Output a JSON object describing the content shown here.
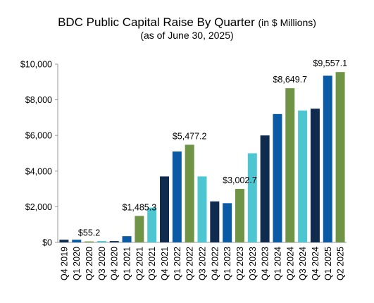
{
  "title": "BDC Public Capital Raise By Quarter",
  "title_unit": "(in $ Millions)",
  "subtitle": "(as of June 30, 2025)",
  "colors": {
    "dark_navy": "#0f2c4e",
    "blue": "#0b5aa5",
    "teal": "#4ec6d1",
    "green": "#6f9445"
  },
  "chart_data": {
    "type": "bar",
    "categories": [
      "Q4 2019",
      "Q1 2020",
      "Q2 2020",
      "Q3 2020",
      "Q4 2020",
      "Q1 2021",
      "Q2 2021",
      "Q3 2021",
      "Q4 2021",
      "Q1 2022",
      "Q2 2022",
      "Q3 2022",
      "Q4 2022",
      "Q1 2023",
      "Q2 2023",
      "Q3 2023",
      "Q4 2023",
      "Q1 2024",
      "Q2 2024",
      "Q3 2024",
      "Q4 2024",
      "Q1 2025",
      "Q2 2025"
    ],
    "values": [
      150,
      150,
      55.2,
      75,
      75,
      350,
      1485.3,
      1950,
      3700,
      5100,
      5477.2,
      3700,
      2300,
      2200,
      3002.7,
      5000,
      6000,
      7200,
      8649.7,
      7400,
      7500,
      9350,
      9557.1
    ],
    "bar_colors": [
      "dark_navy",
      "blue",
      "green",
      "teal",
      "dark_navy",
      "blue",
      "green",
      "teal",
      "dark_navy",
      "blue",
      "green",
      "teal",
      "dark_navy",
      "blue",
      "green",
      "teal",
      "dark_navy",
      "blue",
      "green",
      "teal",
      "dark_navy",
      "blue",
      "green"
    ],
    "data_labels": [
      {
        "index": 2,
        "text": "$55.2"
      },
      {
        "index": 6,
        "text": "$1,485.3"
      },
      {
        "index": 10,
        "text": "$5,477.2"
      },
      {
        "index": 14,
        "text": "$3,002.7"
      },
      {
        "index": 18,
        "text": "$8,649.7"
      },
      {
        "index": 22,
        "text": "$9,557.1"
      }
    ],
    "y_ticks": [
      0,
      2000,
      4000,
      6000,
      8000,
      10000
    ],
    "y_tick_labels": [
      "$0",
      "$2,000",
      "$4,000",
      "$6,000",
      "$8,000",
      "$10,000"
    ],
    "ylim": [
      0,
      10000
    ],
    "grid": false,
    "xlabel": "",
    "ylabel": ""
  }
}
